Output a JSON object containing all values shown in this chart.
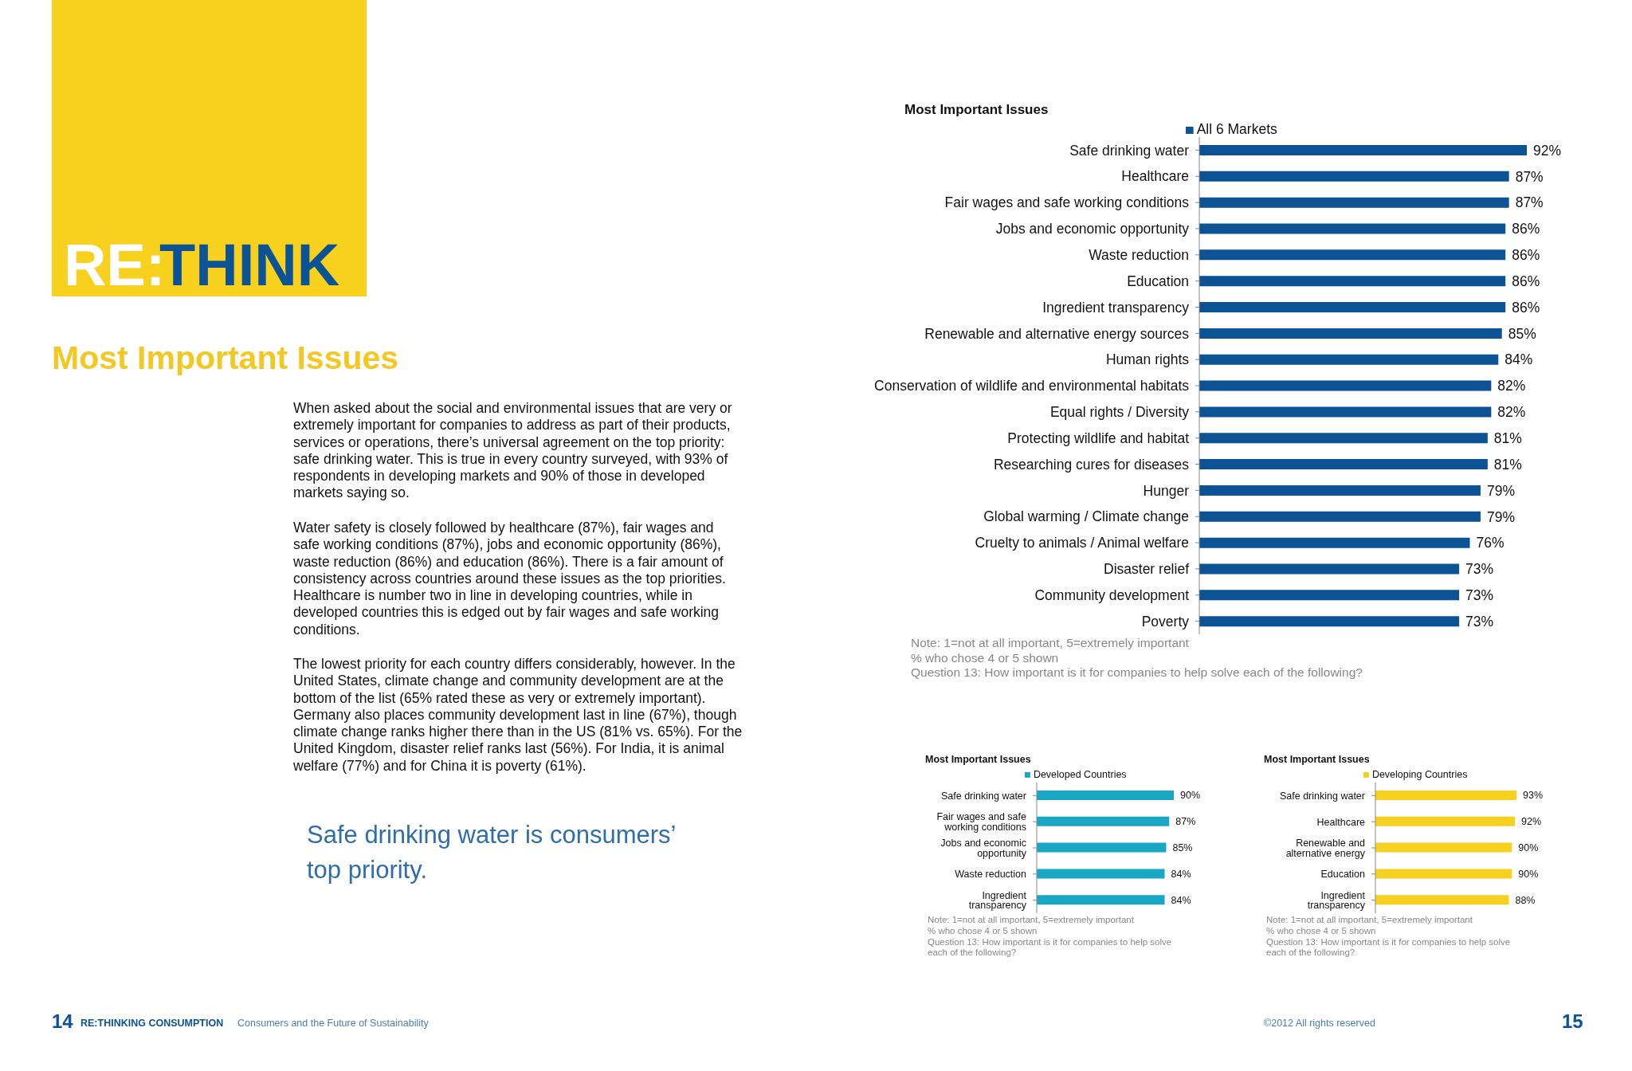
{
  "chart_data": [
    {
      "type": "other",
      "title": "Most Important Issues",
      "annotations": [
        "RE:",
        "THINK",
        "When asked about the social and environmental issues that are very or extremely important for companies to address as part of their products, services or operations, there’s universal agreement on the top priority: safe drinking water. This is true in every country surveyed, with 93% of respondents in developing markets and 90% of those in developed markets saying so.",
        "Water safety is closely followed by healthcare (87%), fair wages and safe working conditions (87%), jobs and economic opportunity (86%), waste reduction (86%) and education (86%). There is a fair amount of consistency across countries around these issues as the top priorities. Healthcare is number two in line in developing countries, while in developed countries this is edged out by fair wages and safe working conditions.",
        "The lowest priority for each country differs considerably, however. In the United States, climate change and community development are at the bottom of the list (65% rated these as very or extremely important). Germany also places community development last in line (67%), though climate change ranks higher there than in the US (81% vs. 65%). For the United Kingdom, disaster relief ranks last (56%). For India, it is animal welfare (77%) and for China it is poverty (61%).",
        "Safe drinking water is consumers’ top priority.",
        "14",
        "RE:THINKING CONSUMPTION",
        "Consumers and the Future of Sustainability",
        "©2012 All rights reserved",
        "15"
      ]
    },
    {
      "type": "bar",
      "orientation": "horizontal",
      "title": "Most Important  Issues",
      "legend": "top",
      "categories": [
        "Safe drinking water",
        "Healthcare",
        "Fair wages and safe working conditions",
        "Jobs and economic opportunity",
        "Waste reduction",
        "Education",
        "Ingredient transparency",
        "Renewable and alternative energy sources",
        "Human rights",
        "Conservation of wildlife and environmental habitats",
        "Equal rights / Diversity",
        "Protecting wildlife and habitat",
        "Researching cures for diseases",
        "Hunger",
        "Global warming / Climate change",
        "Cruelty to animals / Animal welfare",
        "Disaster relief",
        "Community development",
        "Poverty"
      ],
      "series": [
        {
          "name": "All 6 Markets",
          "color": "#0b5394",
          "values": [
            92,
            87,
            87,
            86,
            86,
            86,
            86,
            85,
            84,
            82,
            82,
            81,
            81,
            79,
            79,
            76,
            73,
            73,
            73
          ],
          "value_labels": [
            "92%",
            "87%",
            "87%",
            "86%",
            "86%",
            "86%",
            "86%",
            "85%",
            "84%",
            "82%",
            "82%",
            "81%",
            "81%",
            "79%",
            "79%",
            "76%",
            "73%",
            "73%",
            "73%"
          ]
        }
      ],
      "annotations": [
        "Note: 1=not at all important, 5=extremely important",
        "% who chose 4 or 5 shown",
        "Question 13:  How important is it for companies to help solve each of the following?"
      ]
    },
    {
      "type": "bar",
      "orientation": "horizontal",
      "title": "Most Important Issues",
      "legend": "top",
      "categories": [
        "Safe drinking water",
        "Fair wages and safe working conditions",
        "Jobs and economic opportunity",
        "Waste reduction",
        "Ingredient transparency"
      ],
      "series": [
        {
          "name": "Developed Countries",
          "color": "#1aa7c6",
          "values": [
            90,
            87,
            85,
            84,
            84
          ],
          "value_labels": [
            "90%",
            "87%",
            "85%",
            "84%",
            "84%"
          ]
        }
      ],
      "annotations": [
        "Note: 1=not at all important, 5=extremely important",
        "% who chose 4 or 5 shown",
        "Question 13:  How important is it for companies to help solve each of the following?"
      ]
    },
    {
      "type": "bar",
      "orientation": "horizontal",
      "title": "Most Important Issues",
      "legend": "top",
      "categories": [
        "Safe drinking water",
        "Healthcare",
        "Renewable and alternative energy",
        "Education",
        "Ingredient transparency"
      ],
      "series": [
        {
          "name": "Developing Countries",
          "color": "#f7d11e",
          "values": [
            93,
            92,
            90,
            90,
            88
          ],
          "value_labels": [
            "93%",
            "92%",
            "90%",
            "90%",
            "88%"
          ]
        }
      ],
      "annotations": [
        "Note: 1=not at all important, 5=extremely important",
        "% who chose 4 or 5 shown",
        "Question 13:  How important is it for companies to help solve each of the following?"
      ]
    }
  ]
}
